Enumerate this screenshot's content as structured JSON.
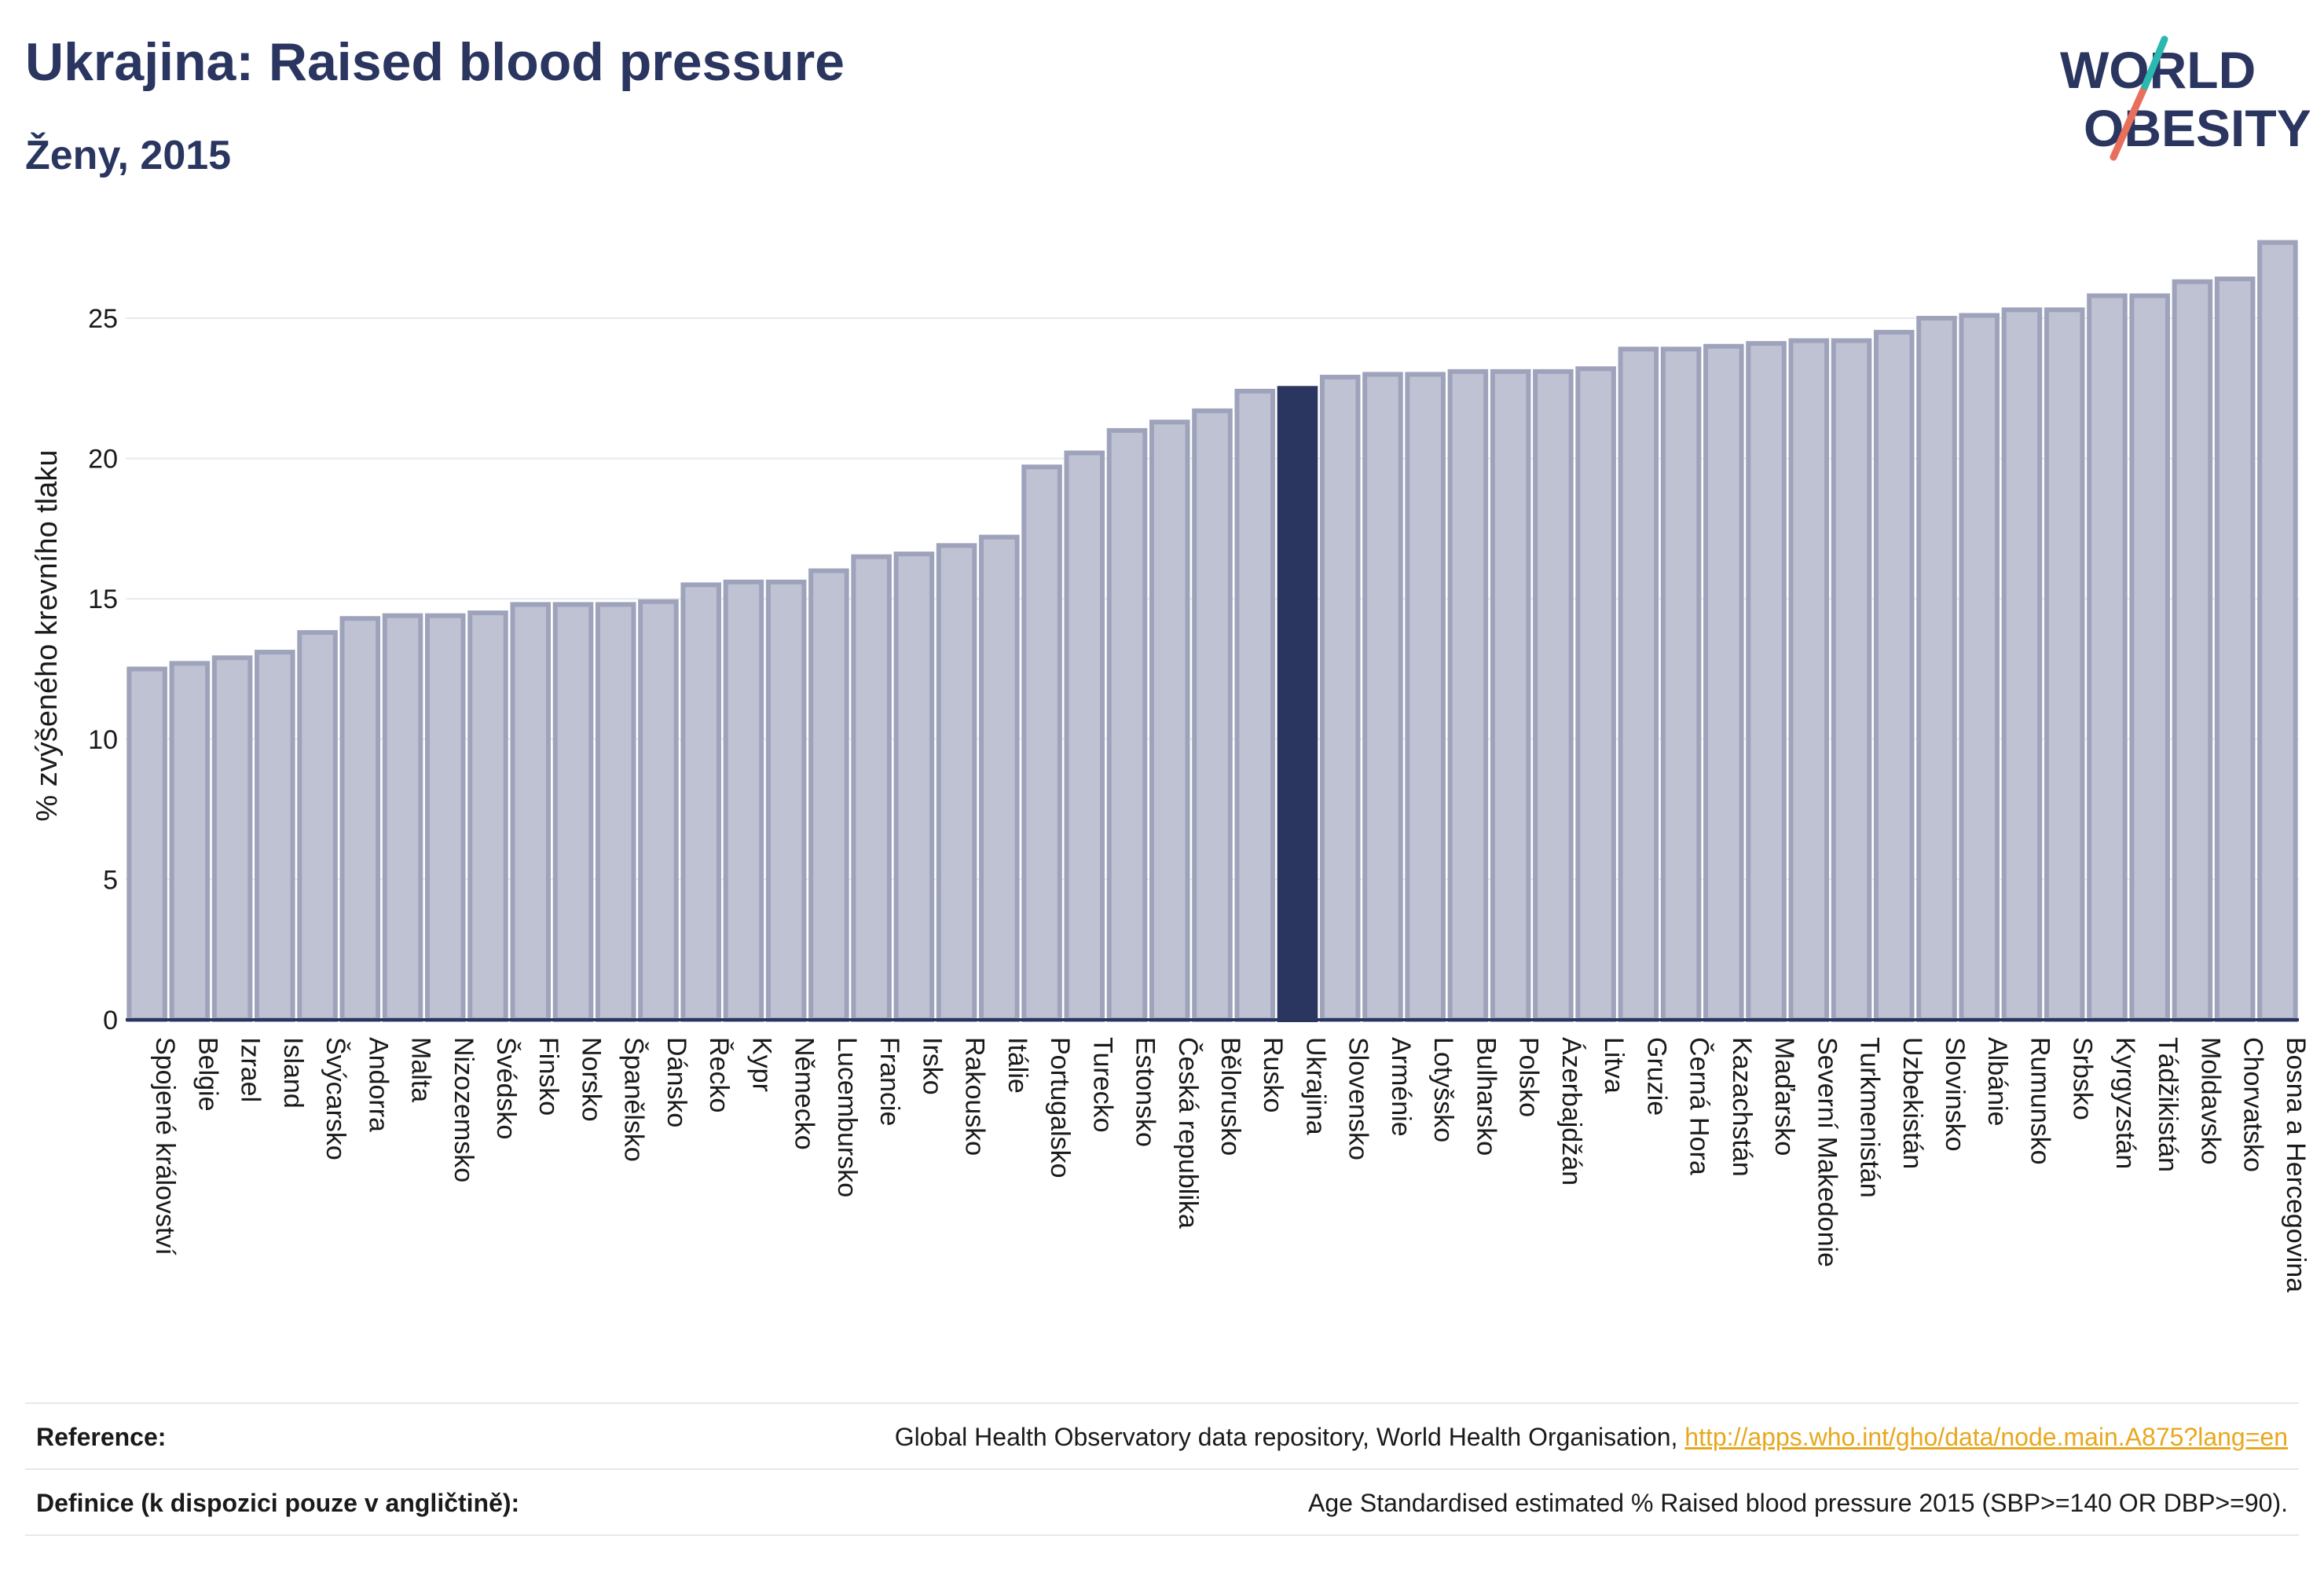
{
  "header": {
    "title": "Ukrajina: Raised blood pressure",
    "subtitle": "Ženy, 2015"
  },
  "logo": {
    "line1": "WORLD",
    "line2": "OBESITY",
    "icon": "world-obesity-logo-slash"
  },
  "colors": {
    "bar": "#bfc2d3",
    "bar_border": "#9ea3bb",
    "highlight": "#2a3560",
    "text": "#2a3560",
    "link": "#e7a81f"
  },
  "chart_data": {
    "type": "bar",
    "ylabel": "% zvýšeného krevního tlaku",
    "xlabel": "",
    "ylim": [
      0,
      28.5
    ],
    "yticks": [
      0,
      5,
      10,
      15,
      20,
      25
    ],
    "grid": true,
    "highlight": "Ukrajina",
    "categories": [
      "Spojené království",
      "Belgie",
      "Izrael",
      "Island",
      "Švýcarsko",
      "Andorra",
      "Malta",
      "Nizozemsko",
      "Švédsko",
      "Finsko",
      "Norsko",
      "Španělsko",
      "Dánsko",
      "Řecko",
      "Kypr",
      "Německo",
      "Lucembursko",
      "Francie",
      "Irsko",
      "Rakousko",
      "Itálie",
      "Portugalsko",
      "Turecko",
      "Estonsko",
      "Česká republika",
      "Bělorusko",
      "Rusko",
      "Ukrajina",
      "Slovensko",
      "Arménie",
      "Lotyšsko",
      "Bulharsko",
      "Polsko",
      "Ázerbajdžán",
      "Litva",
      "Gruzie",
      "Černá Hora",
      "Kazachstán",
      "Maďarsko",
      "Severní Makedonie",
      "Turkmenistán",
      "Uzbekistán",
      "Slovinsko",
      "Albánie",
      "Rumunsko",
      "Srbsko",
      "Kyrgyzstán",
      "Tádžikistán",
      "Moldavsko",
      "Chorvatsko",
      "Bosna a Hercegovina"
    ],
    "values": [
      12.5,
      12.7,
      12.9,
      13.1,
      13.8,
      14.3,
      14.4,
      14.4,
      14.5,
      14.8,
      14.8,
      14.8,
      14.9,
      15.5,
      15.6,
      15.6,
      16.0,
      16.5,
      16.6,
      16.9,
      17.2,
      19.7,
      20.2,
      21.0,
      21.3,
      21.7,
      22.4,
      22.5,
      22.9,
      23.0,
      23.0,
      23.1,
      23.1,
      23.1,
      23.2,
      23.9,
      23.9,
      24.0,
      24.1,
      24.2,
      24.2,
      24.5,
      25.0,
      25.1,
      25.3,
      25.3,
      25.8,
      25.8,
      26.3,
      26.4,
      27.7
    ]
  },
  "references": [
    {
      "label": "Reference:",
      "text": "Global Health Observatory data repository, World Health Organisation, ",
      "link": "http://apps.who.int/gho/data/node.main.A875?lang=en"
    },
    {
      "label": "Definice (k dispozici pouze v angličtině):",
      "text": "Age Standardised estimated % Raised blood pressure 2015 (SBP>=140 OR DBP>=90)."
    }
  ]
}
